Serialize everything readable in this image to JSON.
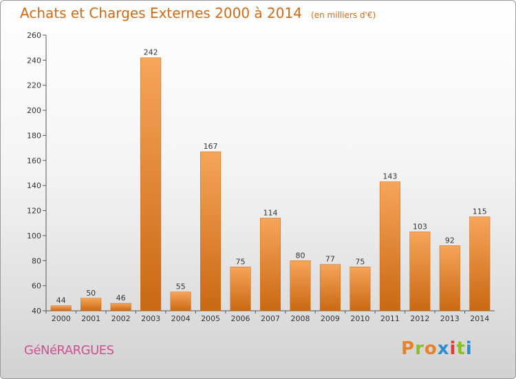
{
  "chart_data": {
    "type": "bar",
    "title": "Achats et Charges Externes 2000 à 2014",
    "subtitle": "(en milliers d'€)",
    "categories": [
      "2000",
      "2001",
      "2002",
      "2003",
      "2004",
      "2005",
      "2006",
      "2007",
      "2008",
      "2009",
      "2010",
      "2011",
      "2012",
      "2013",
      "2014"
    ],
    "values": [
      44,
      50,
      46,
      242,
      55,
      167,
      75,
      114,
      80,
      77,
      75,
      143,
      103,
      92,
      115
    ],
    "ylim": [
      40,
      260
    ],
    "yticks": [
      40,
      60,
      80,
      100,
      120,
      140,
      160,
      180,
      200,
      220,
      240,
      260
    ],
    "grid": false,
    "bar_color": "#e8822a",
    "data_labels": true
  },
  "footer": {
    "town": "GéNéRARGUES",
    "brand": "Proxiti",
    "brand_colors": [
      "#e8822a",
      "#8bbf2a",
      "#e8822a",
      "#2a8fd0",
      "#e23a3a",
      "#8bbf2a",
      "#2a8fd0"
    ]
  }
}
